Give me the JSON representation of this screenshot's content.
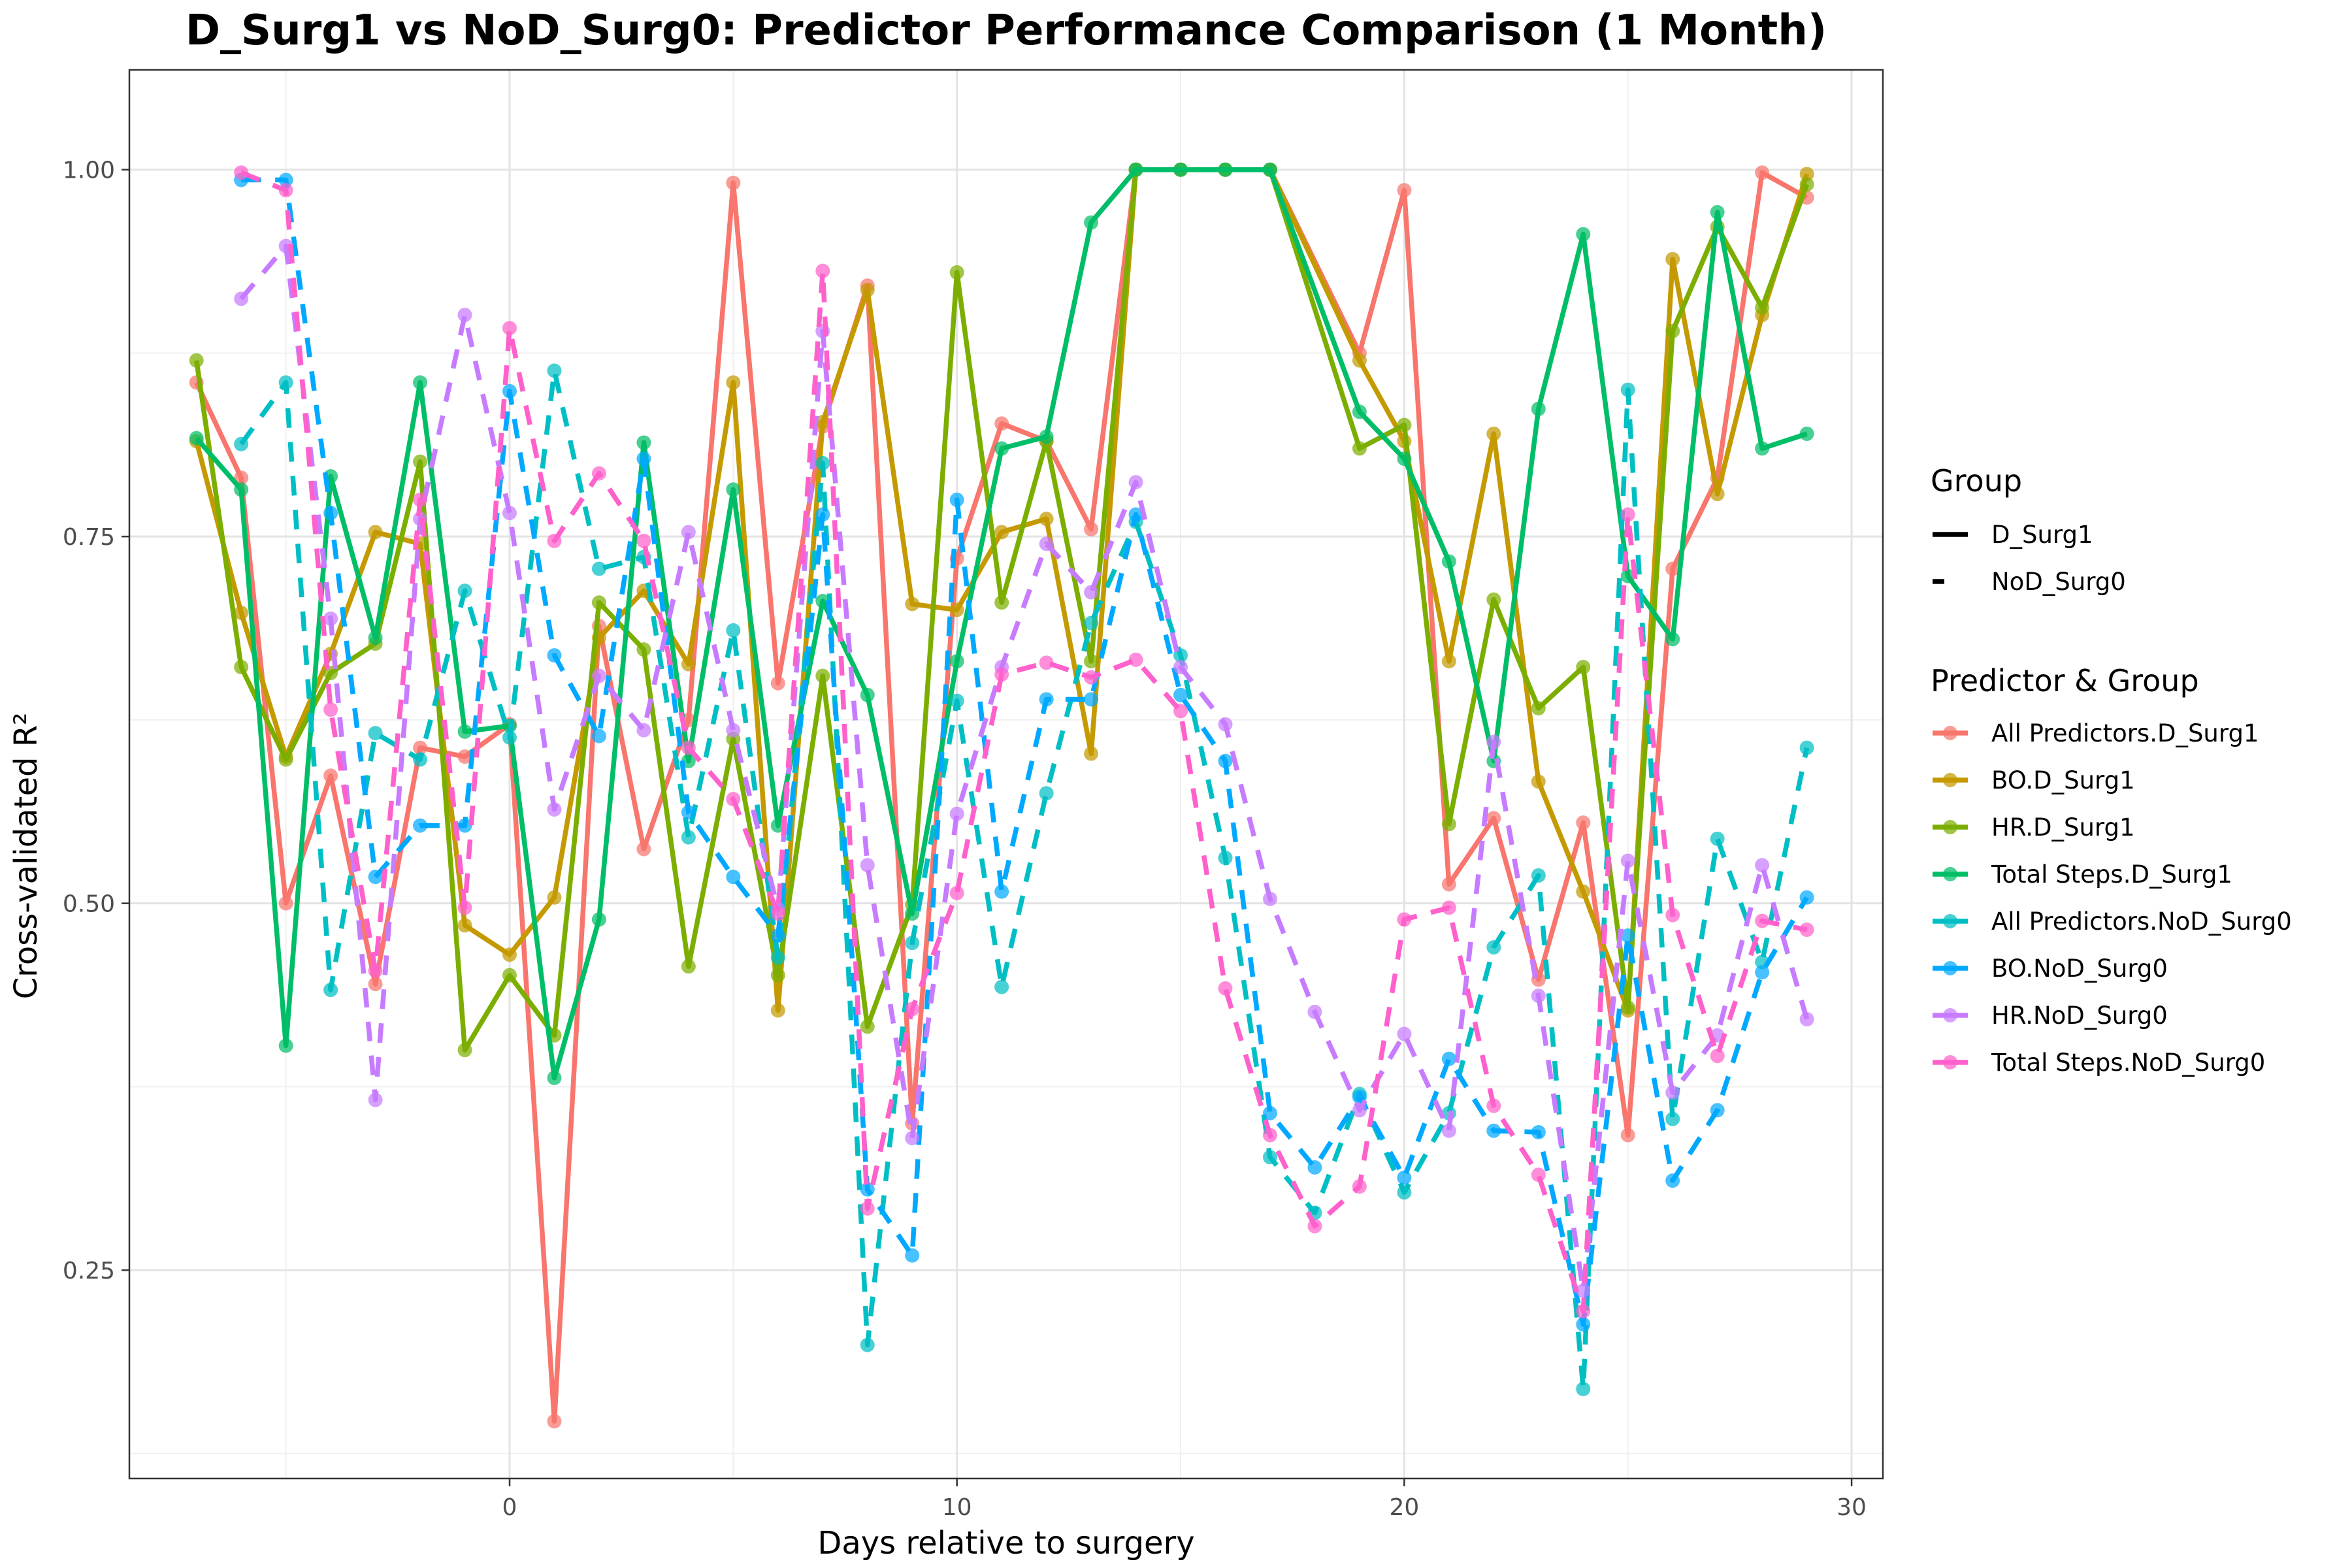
{
  "chart_data": {
    "type": "line",
    "title": "D_Surg1 vs NoD_Surg0: Predictor Performance Comparison (1 Month)",
    "xlabel": "Days relative to surgery",
    "ylabel": "Cross-validated R²",
    "xlim": [
      -8.5,
      30.7
    ],
    "ylim": [
      0.108,
      1.068
    ],
    "x_ticks": [
      0,
      10,
      20,
      30
    ],
    "x_tick_labels": [
      "0",
      "10",
      "20",
      "30"
    ],
    "y_ticks": [
      0.25,
      0.5,
      0.75,
      1.0
    ],
    "y_tick_labels": [
      "0.25",
      "0.50",
      "0.75",
      "1.00"
    ],
    "grid": true,
    "legend_position": "right",
    "legend_group": {
      "title": "Group",
      "entries": [
        {
          "label": "D_Surg1",
          "dash": "solid"
        },
        {
          "label": "NoD_Surg0",
          "dash": "dashed"
        }
      ]
    },
    "legend_predictor": {
      "title": "Predictor & Group"
    },
    "series": [
      {
        "name": "All Predictors.D_Surg1",
        "color": "#F8766D",
        "dash": "solid",
        "x": [
          -7,
          -6,
          -5,
          -4,
          -3,
          -2,
          -1,
          0,
          1,
          2,
          3,
          4,
          5,
          6,
          7,
          8,
          9,
          10,
          11,
          12,
          13,
          14,
          15,
          16,
          17,
          19,
          20,
          21,
          22,
          23,
          24,
          25,
          26,
          27,
          28,
          29
        ],
        "y": [
          0.855,
          0.79,
          0.5,
          0.587,
          0.445,
          0.606,
          0.6,
          0.622,
          0.147,
          0.689,
          0.537,
          0.625,
          0.991,
          0.65,
          0.825,
          0.921,
          0.35,
          0.735,
          0.827,
          0.815,
          0.755,
          1.0,
          1.0,
          1.0,
          1.0,
          0.875,
          0.986,
          0.513,
          0.558,
          0.448,
          0.555,
          0.342,
          0.728,
          0.79,
          0.998,
          0.981
        ]
      },
      {
        "name": "BO.D_Surg1",
        "color": "#C49A00",
        "dash": "solid",
        "x": [
          -7,
          -6,
          -5,
          -4,
          -3,
          -2,
          -1,
          0,
          1,
          2,
          3,
          4,
          5,
          6,
          7,
          8,
          9,
          10,
          11,
          12,
          13,
          14,
          15,
          16,
          17,
          19,
          20,
          21,
          22,
          23,
          24,
          25,
          26,
          27,
          28,
          29
        ],
        "y": [
          0.815,
          0.698,
          0.6,
          0.67,
          0.753,
          0.745,
          0.485,
          0.465,
          0.504,
          0.681,
          0.713,
          0.663,
          0.855,
          0.427,
          0.828,
          0.918,
          0.704,
          0.7,
          0.753,
          0.762,
          0.602,
          1.0,
          1.0,
          1.0,
          1.0,
          0.87,
          0.815,
          0.665,
          0.82,
          0.583,
          0.508,
          0.427,
          0.939,
          0.779,
          0.901,
          0.997
        ]
      },
      {
        "name": "HR.D_Surg1",
        "color": "#7CAE00",
        "dash": "solid",
        "x": [
          -7,
          -6,
          -5,
          -4,
          -3,
          -2,
          -1,
          0,
          1,
          2,
          3,
          4,
          5,
          6,
          7,
          8,
          9,
          10,
          11,
          12,
          13,
          14,
          15,
          16,
          17,
          19,
          20,
          21,
          22,
          23,
          24,
          25,
          26,
          27,
          28,
          29
        ],
        "y": [
          0.87,
          0.661,
          0.598,
          0.657,
          0.677,
          0.801,
          0.4,
          0.451,
          0.41,
          0.705,
          0.673,
          0.457,
          0.612,
          0.451,
          0.655,
          0.416,
          0.499,
          0.93,
          0.705,
          0.815,
          0.665,
          1.0,
          1.0,
          1.0,
          1.0,
          0.81,
          0.826,
          0.554,
          0.707,
          0.633,
          0.661,
          0.429,
          0.89,
          0.961,
          0.906,
          0.99
        ]
      },
      {
        "name": "Total Steps.D_Surg1",
        "color": "#00BE67",
        "dash": "solid",
        "x": [
          -7,
          -6,
          -5,
          -4,
          -3,
          -2,
          -1,
          0,
          1,
          2,
          3,
          4,
          5,
          6,
          7,
          8,
          9,
          10,
          11,
          12,
          13,
          14,
          15,
          16,
          17,
          19,
          20,
          21,
          22,
          23,
          24,
          25,
          26,
          27,
          28,
          29
        ],
        "y": [
          0.817,
          0.782,
          0.403,
          0.791,
          0.681,
          0.855,
          0.617,
          0.621,
          0.381,
          0.489,
          0.814,
          0.597,
          0.782,
          0.553,
          0.706,
          0.642,
          0.493,
          0.665,
          0.81,
          0.818,
          0.964,
          1.0,
          1.0,
          1.0,
          1.0,
          0.835,
          0.803,
          0.733,
          0.597,
          0.837,
          0.956,
          0.723,
          0.68,
          0.971,
          0.81,
          0.82
        ]
      },
      {
        "name": "All Predictors.NoD_Surg0",
        "color": "#00BFC4",
        "dash": "dashed",
        "x": [
          -6,
          -5,
          -4,
          -3,
          -2,
          -1,
          0,
          1,
          2,
          3,
          4,
          5,
          6,
          7,
          8,
          9,
          10,
          11,
          12,
          13,
          14,
          15,
          16,
          17,
          18,
          19,
          20,
          21,
          22,
          23,
          24,
          25,
          26,
          27,
          28,
          29
        ],
        "y": [
          0.813,
          0.855,
          0.441,
          0.616,
          0.598,
          0.713,
          0.613,
          0.863,
          0.728,
          0.736,
          0.545,
          0.686,
          0.463,
          0.8,
          0.199,
          0.473,
          0.638,
          0.443,
          0.575,
          0.691,
          0.76,
          0.669,
          0.531,
          0.327,
          0.289,
          0.37,
          0.303,
          0.357,
          0.47,
          0.519,
          0.169,
          0.85,
          0.353,
          0.544,
          0.46,
          0.606
        ]
      },
      {
        "name": "BO.NoD_Surg0",
        "color": "#00A9FF",
        "dash": "dashed",
        "x": [
          -6,
          -5,
          -4,
          -3,
          -2,
          -1,
          0,
          1,
          2,
          3,
          4,
          5,
          6,
          7,
          8,
          9,
          10,
          11,
          12,
          13,
          14,
          15,
          16,
          17,
          18,
          19,
          20,
          21,
          22,
          23,
          24,
          25,
          26,
          27,
          28,
          29
        ],
        "y": [
          0.993,
          0.993,
          0.766,
          0.518,
          0.553,
          0.553,
          0.849,
          0.669,
          0.614,
          0.803,
          0.562,
          0.518,
          0.478,
          0.765,
          0.305,
          0.26,
          0.775,
          0.508,
          0.639,
          0.639,
          0.765,
          0.642,
          0.597,
          0.357,
          0.32,
          0.368,
          0.313,
          0.394,
          0.345,
          0.344,
          0.213,
          0.478,
          0.311,
          0.359,
          0.453,
          0.504
        ]
      },
      {
        "name": "HR.NoD_Surg0",
        "color": "#C77CFF",
        "dash": "dashed",
        "x": [
          -6,
          -5,
          -4,
          -3,
          -2,
          -1,
          0,
          1,
          2,
          3,
          4,
          5,
          6,
          7,
          8,
          9,
          10,
          11,
          12,
          13,
          14,
          15,
          16,
          17,
          18,
          19,
          20,
          21,
          22,
          23,
          24,
          25,
          26,
          27,
          28,
          29
        ],
        "y": [
          0.912,
          0.948,
          0.694,
          0.366,
          0.762,
          0.901,
          0.766,
          0.564,
          0.655,
          0.618,
          0.753,
          0.618,
          0.496,
          0.89,
          0.526,
          0.34,
          0.561,
          0.661,
          0.745,
          0.712,
          0.787,
          0.661,
          0.622,
          0.503,
          0.426,
          0.359,
          0.411,
          0.345,
          0.61,
          0.437,
          0.236,
          0.529,
          0.371,
          0.41,
          0.526,
          0.421
        ]
      },
      {
        "name": "Total Steps.NoD_Surg0",
        "color": "#FF61CC",
        "dash": "dashed",
        "x": [
          -6,
          -5,
          -4,
          -3,
          -2,
          -1,
          0,
          1,
          2,
          3,
          4,
          5,
          6,
          7,
          8,
          9,
          10,
          11,
          12,
          13,
          14,
          15,
          16,
          17,
          18,
          19,
          20,
          21,
          22,
          23,
          24,
          25,
          26,
          27,
          28,
          29
        ],
        "y": [
          0.998,
          0.986,
          0.632,
          0.454,
          0.775,
          0.497,
          0.892,
          0.747,
          0.793,
          0.747,
          0.606,
          0.571,
          0.493,
          0.931,
          0.292,
          0.428,
          0.507,
          0.656,
          0.664,
          0.654,
          0.666,
          0.631,
          0.442,
          0.342,
          0.28,
          0.307,
          0.489,
          0.497,
          0.362,
          0.315,
          0.222,
          0.765,
          0.492,
          0.396,
          0.488,
          0.482
        ]
      }
    ]
  }
}
